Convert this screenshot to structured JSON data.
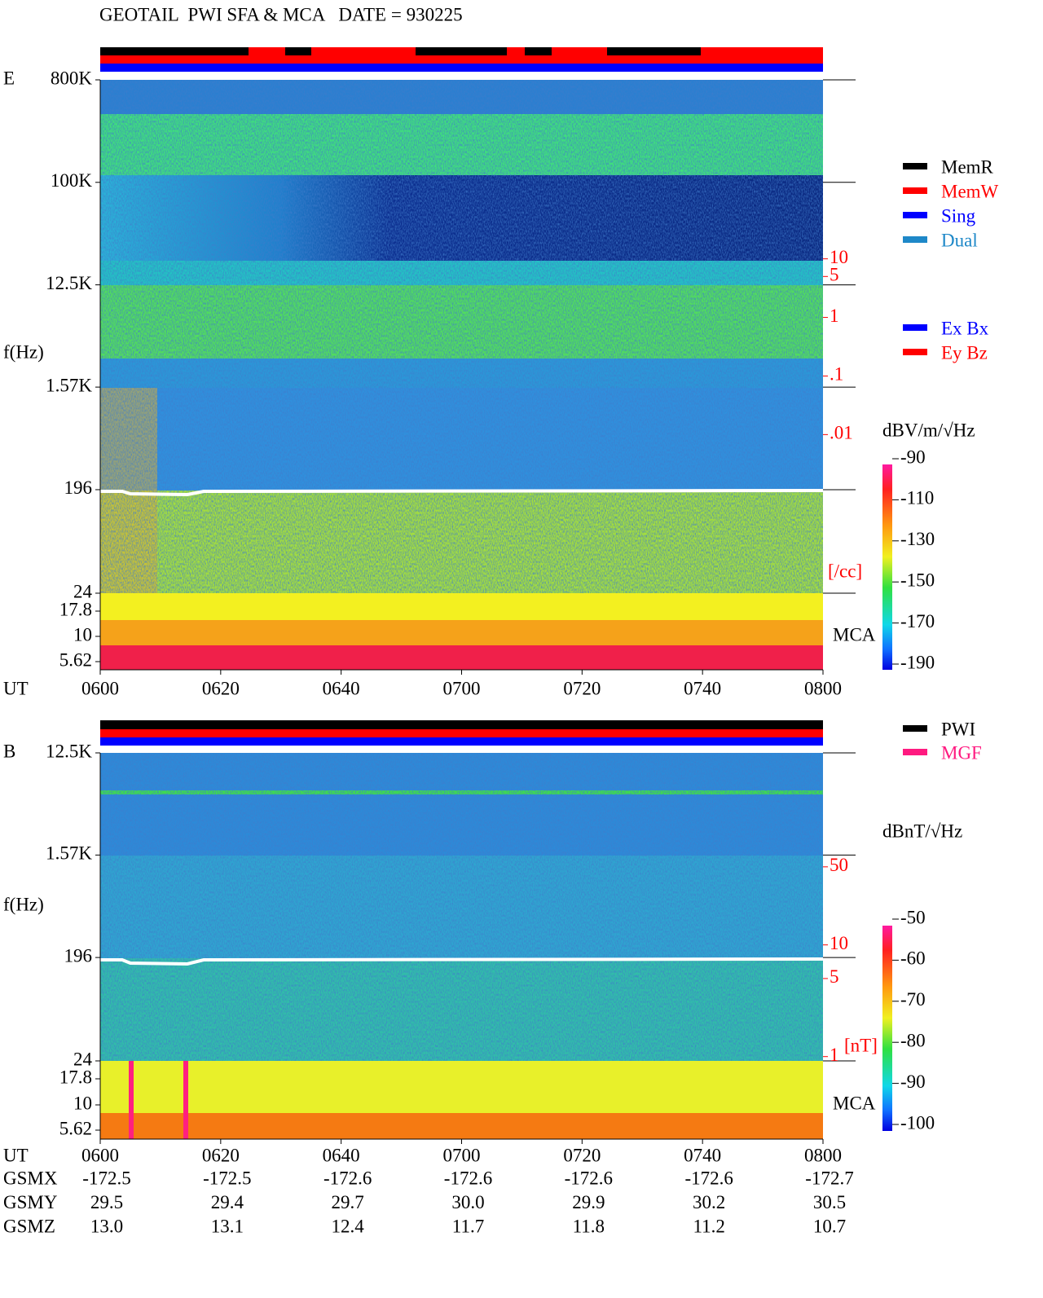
{
  "title": "GEOTAIL  PWI SFA & MCA   DATE = 930225",
  "chart_data": [
    {
      "type": "spectrogram",
      "panel": "E",
      "ylabel": "f(Hz)",
      "xlabel": "UT",
      "time_labels": [
        "0600",
        "0620",
        "0640",
        "0700",
        "0720",
        "0740",
        "0800"
      ],
      "log_y": true,
      "ylim": [
        24,
        800000
      ],
      "yticks": [
        {
          "value": 800000,
          "label": "800K"
        },
        {
          "value": 100000,
          "label": "100K"
        },
        {
          "value": 12500,
          "label": "12.5K"
        },
        {
          "value": 1570,
          "label": "1.57K"
        },
        196,
        24
      ],
      "mca_label": "MCA",
      "mca_ticks": [
        17.8,
        10,
        5.62
      ],
      "y2lim": [
        0.005,
        15
      ],
      "y2ticks": [
        10,
        5,
        1,
        {
          "value": 0.1,
          "label": ".1"
        },
        {
          "value": 0.01,
          "label": ".01"
        }
      ],
      "y2label": "[/cc]",
      "colorbar_label": "dBV/m/√Hz",
      "clim": [
        -190,
        -90
      ],
      "cticks": [
        -90,
        -110,
        -130,
        -150,
        -170,
        -190
      ],
      "legends": [
        [
          {
            "name": "MemR",
            "color": "#000000"
          },
          {
            "name": "MemW",
            "color": "#ff0000"
          },
          {
            "name": "Sing",
            "color": "#0000ff"
          },
          {
            "name": "Dual",
            "color": "#1e88c8"
          }
        ],
        [
          {
            "name": "Ex Bx",
            "color": "#0000ff"
          },
          {
            "name": "Ey Bz",
            "color": "#ff0000"
          }
        ]
      ]
    },
    {
      "type": "spectrogram",
      "panel": "B",
      "ylabel": "f(Hz)",
      "xlabel": "UT",
      "time_labels": [
        "0600",
        "0620",
        "0640",
        "0700",
        "0720",
        "0740",
        "0800"
      ],
      "log_y": true,
      "ylim": [
        24,
        12500
      ],
      "yticks": [
        {
          "value": 12500,
          "label": "12.5K"
        },
        {
          "value": 1570,
          "label": "1.57K"
        },
        196,
        24
      ],
      "mca_label": "MCA",
      "mca_ticks": [
        17.8,
        10,
        5.62
      ],
      "y2lim": [
        0.8,
        60
      ],
      "y2ticks": [
        50,
        10,
        5,
        1
      ],
      "y2label": "[nT]",
      "colorbar_label": "dBnT/√Hz",
      "clim": [
        -100,
        -50
      ],
      "cticks": [
        -50,
        -60,
        -70,
        -80,
        -90,
        -100
      ],
      "legends": [
        [
          {
            "name": "PWI",
            "color": "#000000"
          },
          {
            "name": "MGF",
            "color": "#ff1a80"
          }
        ]
      ]
    }
  ],
  "ephemeris": {
    "rows": [
      {
        "label": "GSMX",
        "values": [
          "-172.5",
          "-172.5",
          "-172.6",
          "-172.6",
          "-172.6",
          "-172.6",
          "-172.7"
        ]
      },
      {
        "label": "GSMY",
        "values": [
          "29.5",
          "29.4",
          "29.7",
          "30.0",
          "29.9",
          "30.2",
          "30.5"
        ]
      },
      {
        "label": "GSMZ",
        "values": [
          "13.0",
          "13.1",
          "12.4",
          "11.7",
          "11.8",
          "11.2",
          "10.7"
        ]
      }
    ]
  }
}
